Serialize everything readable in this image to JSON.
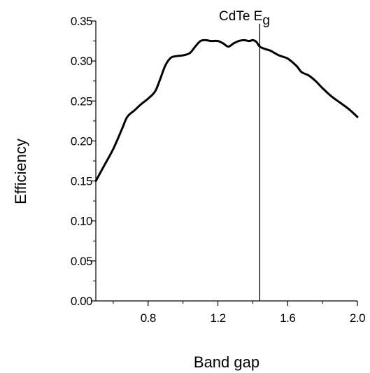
{
  "chart_data": {
    "type": "line",
    "xlabel": "Band gap",
    "ylabel": "Efficiency",
    "xlim": [
      0.5,
      2.0
    ],
    "ylim": [
      0.0,
      0.35
    ],
    "x_ticks": [
      "0.8",
      "1.2",
      "1.6",
      "2.0"
    ],
    "x_tick_values": [
      0.8,
      1.2,
      1.6,
      2.0
    ],
    "y_ticks": [
      "0.00",
      "0.05",
      "0.10",
      "0.15",
      "0.20",
      "0.25",
      "0.30",
      "0.35"
    ],
    "y_tick_values": [
      0.0,
      0.05,
      0.1,
      0.15,
      0.2,
      0.25,
      0.3,
      0.35
    ],
    "grid": false,
    "legend": "none",
    "line_color": "#000000",
    "series": [
      {
        "x": [
          0.5,
          0.55,
          0.6,
          0.65,
          0.68,
          0.72,
          0.76,
          0.8,
          0.84,
          0.87,
          0.9,
          0.93,
          0.96,
          1.0,
          1.04,
          1.07,
          1.1,
          1.13,
          1.16,
          1.2,
          1.23,
          1.26,
          1.29,
          1.32,
          1.35,
          1.38,
          1.4,
          1.42,
          1.44,
          1.47,
          1.5,
          1.55,
          1.6,
          1.65,
          1.68,
          1.72,
          1.76,
          1.8,
          1.85,
          1.9,
          1.95,
          2.0
        ],
        "y": [
          0.15,
          0.17,
          0.19,
          0.215,
          0.23,
          0.238,
          0.246,
          0.253,
          0.262,
          0.278,
          0.295,
          0.304,
          0.306,
          0.307,
          0.31,
          0.318,
          0.325,
          0.326,
          0.325,
          0.325,
          0.322,
          0.318,
          0.322,
          0.325,
          0.326,
          0.325,
          0.326,
          0.324,
          0.318,
          0.315,
          0.313,
          0.307,
          0.303,
          0.294,
          0.286,
          0.282,
          0.275,
          0.266,
          0.256,
          0.248,
          0.24,
          0.23
        ]
      }
    ],
    "annotations": [
      {
        "text": "CdTe E",
        "subscript": "g",
        "x": 1.44
      }
    ]
  }
}
